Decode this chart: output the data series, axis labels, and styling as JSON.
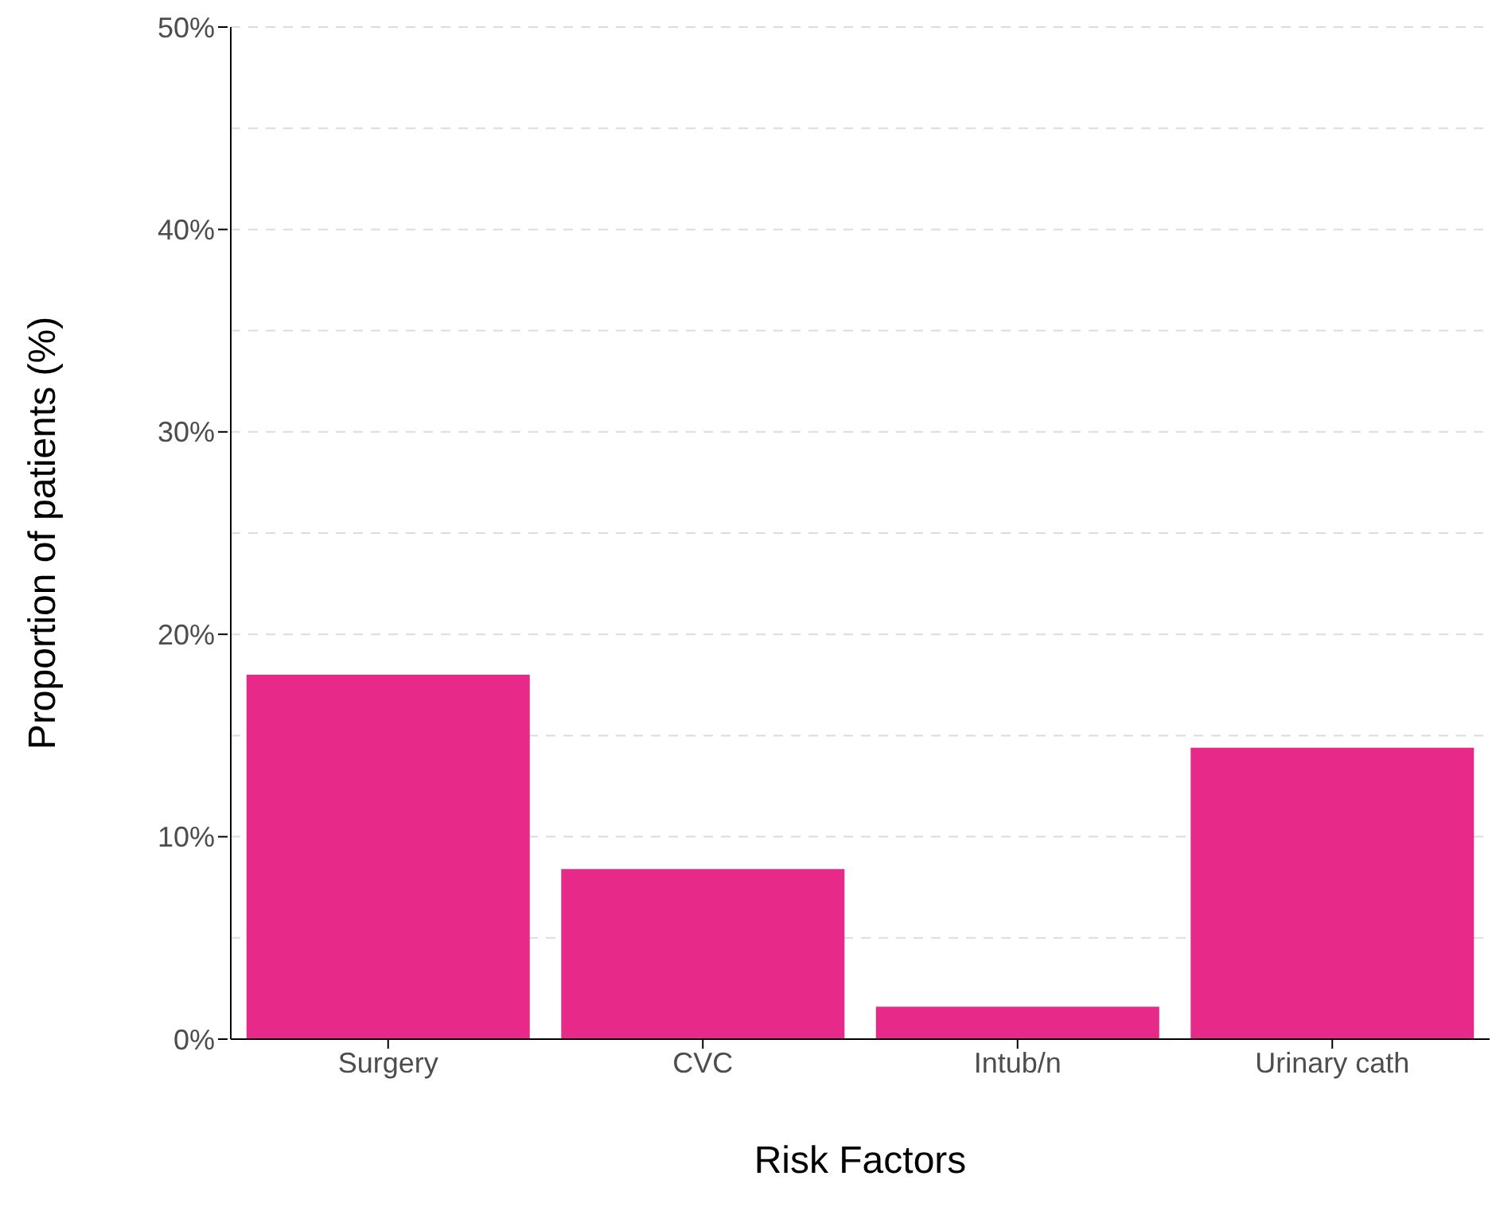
{
  "chart_data": {
    "type": "bar",
    "xlabel": "Risk Factors",
    "ylabel": "Proportion of patients (%)",
    "categories": [
      "Surgery",
      "CVC",
      "Intub/n",
      "Urinary cath"
    ],
    "values": [
      18.0,
      8.4,
      1.6,
      14.4
    ],
    "color": "#e7298a",
    "ylim": [
      0,
      50
    ],
    "yticks": [
      {
        "value": 0,
        "label": "0%"
      },
      {
        "value": 5,
        "label": null
      },
      {
        "value": 10,
        "label": "10%"
      },
      {
        "value": 15,
        "label": null
      },
      {
        "value": 20,
        "label": "20%"
      },
      {
        "value": 25,
        "label": null
      },
      {
        "value": 30,
        "label": "30%"
      },
      {
        "value": 35,
        "label": null
      },
      {
        "value": 40,
        "label": "40%"
      },
      {
        "value": 45,
        "label": null
      },
      {
        "value": 50,
        "label": "50%"
      }
    ],
    "grid": "y",
    "legend": false
  }
}
